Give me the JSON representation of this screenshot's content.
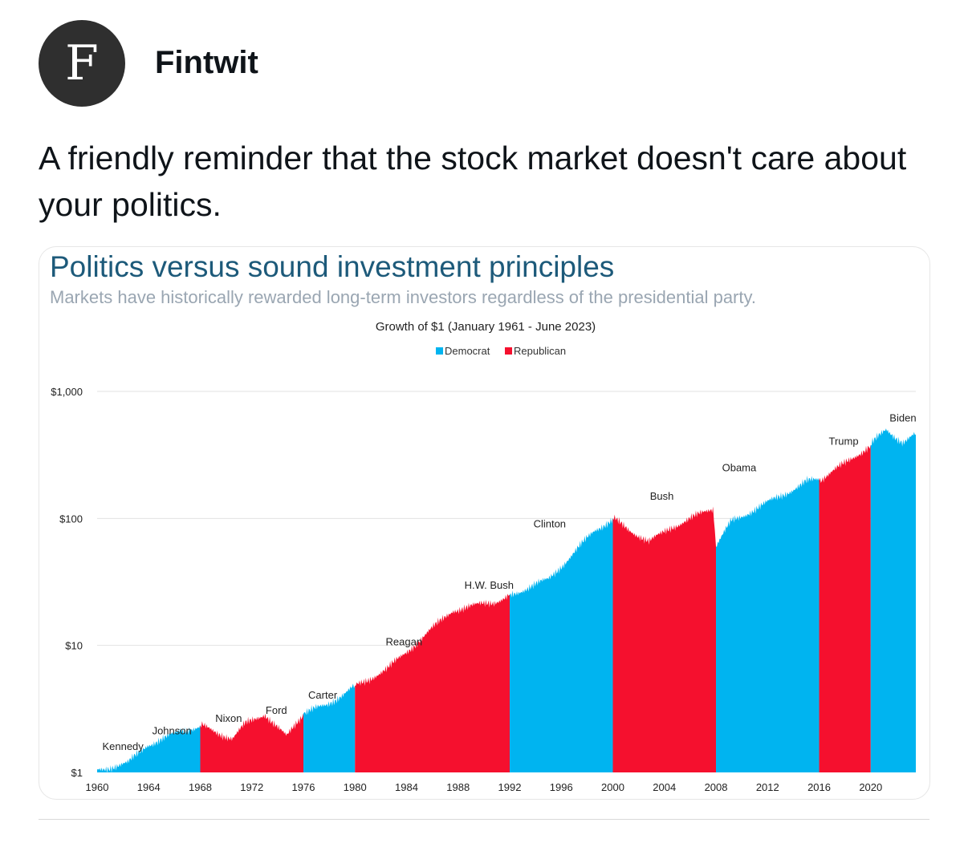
{
  "post": {
    "author_initial": "F",
    "author_name": "Fintwit",
    "text": "A friendly reminder that the stock market doesn't care about your politics."
  },
  "card": {
    "title": "Politics versus sound investment principles",
    "subtitle": "Markets have historically rewarded long-term investors regardless of the presidential party."
  },
  "colors": {
    "democrat": "#00b4f0",
    "republican": "#f5102e",
    "title": "#1d5a7a"
  },
  "chart_data": {
    "type": "area",
    "title": "Growth of $1 (January 1961 - June 2023)",
    "legend": [
      "Democrat",
      "Republican"
    ],
    "legend_placement": "top-center",
    "y_scale": "log",
    "ylim": [
      1,
      1000
    ],
    "y_ticks": [
      {
        "value": 1,
        "label": "$1"
      },
      {
        "value": 10,
        "label": "$10"
      },
      {
        "value": 100,
        "label": "$100"
      },
      {
        "value": 1000,
        "label": "$1,000"
      }
    ],
    "xlim": [
      1960,
      2023.5
    ],
    "x_ticks": [
      1960,
      1964,
      1968,
      1972,
      1976,
      1980,
      1984,
      1988,
      1992,
      1996,
      2000,
      2004,
      2008,
      2012,
      2016,
      2020
    ],
    "series": [
      {
        "x": [
          1960.0,
          1962.4,
          1963.9,
          1966.0,
          1968.0,
          1970.5,
          1971.5,
          1973.0,
          1974.7,
          1976.0,
          1977.8,
          1980.0,
          1982.5,
          1985.0,
          1987.6,
          1990.8,
          1992.0,
          1995.0,
          1998.6,
          2000.0,
          2002.8,
          2004.5,
          2007.8,
          2008.0,
          2009.2,
          2013.0,
          2015.0,
          2016.0,
          2018.0,
          2020.0,
          2021.2,
          2022.5,
          2023.5
        ],
        "y": [
          1.05,
          1.18,
          1.65,
          2.0,
          2.35,
          1.85,
          2.4,
          2.9,
          1.9,
          2.9,
          3.4,
          4.8,
          6.5,
          11.0,
          19.0,
          22.0,
          25.0,
          33.0,
          80.0,
          100.0,
          65.0,
          85.0,
          120.0,
          60.0,
          95.0,
          150.0,
          195.0,
          200.0,
          270.0,
          380.0,
          500.0,
          400.0,
          460.0
        ]
      }
    ],
    "terms": [
      {
        "name": "Kennedy",
        "party": "Democrat",
        "start": 1960,
        "end": 1963.9
      },
      {
        "name": "Johnson",
        "party": "Democrat",
        "start": 1963.9,
        "end": 1968
      },
      {
        "name": "Nixon",
        "party": "Republican",
        "start": 1968,
        "end": 1974.7
      },
      {
        "name": "Ford",
        "party": "Republican",
        "start": 1974.7,
        "end": 1976
      },
      {
        "name": "Carter",
        "party": "Democrat",
        "start": 1976,
        "end": 1980
      },
      {
        "name": "Reagan",
        "party": "Republican",
        "start": 1980,
        "end": 1988
      },
      {
        "name": "H.W. Bush",
        "party": "Republican",
        "start": 1988,
        "end": 1992
      },
      {
        "name": "Clinton",
        "party": "Democrat",
        "start": 1992,
        "end": 2000
      },
      {
        "name": "Bush",
        "party": "Republican",
        "start": 2000,
        "end": 2008
      },
      {
        "name": "Obama",
        "party": "Democrat",
        "start": 2008,
        "end": 2016
      },
      {
        "name": "Trump",
        "party": "Republican",
        "start": 2016,
        "end": 2020
      },
      {
        "name": "Biden",
        "party": "Democrat",
        "start": 2020,
        "end": 2023.5
      }
    ],
    "annotations": [
      {
        "text": "Kennedy",
        "x": 1962,
        "y": 1.5
      },
      {
        "text": "Johnson",
        "x": 1965.8,
        "y": 2.0
      },
      {
        "text": "Nixon",
        "x": 1970.2,
        "y": 2.5
      },
      {
        "text": "Ford",
        "x": 1973.9,
        "y": 2.9
      },
      {
        "text": "Carter",
        "x": 1977.5,
        "y": 3.8
      },
      {
        "text": "Reagan",
        "x": 1983.8,
        "y": 10.0
      },
      {
        "text": "H.W. Bush",
        "x": 1990.4,
        "y": 28.0
      },
      {
        "text": "Clinton",
        "x": 1995.1,
        "y": 85.0
      },
      {
        "text": "Bush",
        "x": 2003.8,
        "y": 140.0
      },
      {
        "text": "Obama",
        "x": 2009.8,
        "y": 235.0
      },
      {
        "text": "Trump",
        "x": 2017.9,
        "y": 380.0
      },
      {
        "text": "Biden",
        "x": 2022.5,
        "y": 580.0
      }
    ]
  }
}
